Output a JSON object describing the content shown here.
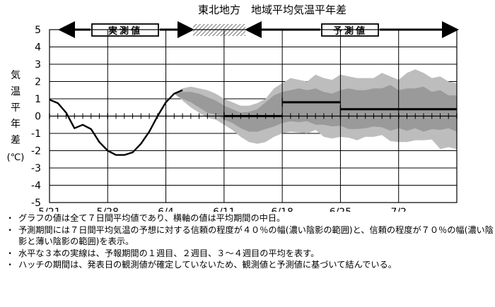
{
  "chart_data": {
    "type": "line",
    "title": "東北地方　地域平均気温平年差",
    "ylabel": "気温平年差(℃)",
    "ylabel_chars": [
      "気",
      "温",
      "平",
      "年",
      "差"
    ],
    "ylabel_unit": "(℃)",
    "ylim": [
      -5,
      5
    ],
    "yticks": [
      -5,
      -4,
      -3,
      -2,
      -1,
      0,
      1,
      2,
      3,
      4,
      5
    ],
    "xrange_days": [
      0,
      49
    ],
    "xticks": [
      {
        "label": "5/21",
        "day": 0
      },
      {
        "label": "5/28",
        "day": 7
      },
      {
        "label": "6/4",
        "day": 14
      },
      {
        "label": "6/11",
        "day": 21
      },
      {
        "label": "6/18",
        "day": 28
      },
      {
        "label": "6/25",
        "day": 35
      },
      {
        "label": "7/2",
        "day": 42
      }
    ],
    "grid": true,
    "periods": {
      "observed_label": "実測値",
      "forecast_label": "予測値",
      "observed_days": [
        0,
        14
      ],
      "hatch_days": [
        16,
        22
      ],
      "forecast_days": [
        22,
        49
      ]
    },
    "observed": {
      "x": [
        0,
        1,
        2,
        3,
        4,
        5,
        6,
        7,
        8,
        9,
        10,
        11,
        12,
        13,
        14,
        15,
        16
      ],
      "y": [
        0.95,
        0.75,
        0.2,
        -0.7,
        -0.5,
        -0.75,
        -1.5,
        -2.0,
        -2.25,
        -2.25,
        -2.1,
        -1.6,
        -0.9,
        0.0,
        0.8,
        1.3,
        1.5
      ]
    },
    "band_70": {
      "x": [
        15,
        16,
        17,
        18,
        19,
        20,
        21,
        22,
        23,
        24,
        25,
        26,
        27,
        28,
        29,
        30,
        31,
        32,
        33,
        34,
        35,
        36,
        37,
        38,
        39,
        40,
        41,
        42,
        43,
        44,
        45,
        46,
        47,
        48,
        49
      ],
      "upper": [
        1.3,
        1.6,
        1.7,
        1.6,
        1.5,
        1.3,
        1.0,
        0.8,
        0.6,
        0.6,
        0.75,
        1.0,
        1.6,
        1.9,
        2.2,
        2.1,
        2.0,
        2.4,
        2.2,
        2.1,
        2.4,
        2.3,
        2.2,
        2.2,
        2.2,
        2.5,
        2.3,
        2.1,
        2.5,
        2.7,
        2.5,
        2.2,
        2.3,
        2.0,
        1.9
      ],
      "lower": [
        1.3,
        0.9,
        0.5,
        0.2,
        -0.1,
        -0.2,
        -0.5,
        -0.8,
        -1.2,
        -1.5,
        -1.6,
        -1.5,
        -1.2,
        -1.0,
        -0.9,
        -0.95,
        -1.0,
        -0.8,
        -1.2,
        -1.3,
        -1.2,
        -1.25,
        -1.4,
        -1.2,
        -1.2,
        -1.1,
        -1.45,
        -1.5,
        -1.5,
        -1.4,
        -1.4,
        -1.35,
        -1.9,
        -1.8,
        -1.9
      ]
    },
    "band_40": {
      "x": [
        15,
        16,
        17,
        18,
        19,
        20,
        21,
        22,
        23,
        24,
        25,
        26,
        27,
        28,
        29,
        30,
        31,
        32,
        33,
        34,
        35,
        36,
        37,
        38,
        39,
        40,
        41,
        42,
        43,
        44,
        45,
        46,
        47,
        48,
        49
      ],
      "upper": [
        1.3,
        1.4,
        1.4,
        1.3,
        1.1,
        0.9,
        0.6,
        0.4,
        0.2,
        0.25,
        0.4,
        0.8,
        1.2,
        1.4,
        1.5,
        1.6,
        1.5,
        1.6,
        1.4,
        1.3,
        1.5,
        1.6,
        1.5,
        1.5,
        1.6,
        1.6,
        1.8,
        1.5,
        1.6,
        1.6,
        1.7,
        1.4,
        1.5,
        1.2,
        1.2
      ],
      "lower": [
        1.3,
        1.0,
        0.8,
        0.5,
        0.2,
        0.1,
        -0.2,
        -0.4,
        -0.7,
        -0.9,
        -0.9,
        -0.75,
        -0.6,
        -0.4,
        -0.3,
        -0.35,
        -0.3,
        -0.5,
        -0.5,
        -0.6,
        -0.55,
        -0.75,
        -0.75,
        -0.7,
        -0.6,
        -0.65,
        -0.85,
        -0.7,
        -0.85,
        -0.7,
        -0.9,
        -0.75,
        -0.8,
        -0.7,
        -0.9
      ]
    },
    "mean_lines": [
      {
        "name": "1週目",
        "x": [
          21,
          28
        ],
        "y": 0.0
      },
      {
        "name": "2週目",
        "x": [
          28,
          35
        ],
        "y": 0.8
      },
      {
        "name": "3～4週目",
        "x": [
          35,
          49
        ],
        "y": 0.4
      }
    ],
    "colors": {
      "band_70": "#bdbdbd",
      "band_40": "#9a9a9a",
      "line": "#000000",
      "hatch": "#7a7a7a"
    }
  },
  "notes": [
    {
      "bullet": "・",
      "text": "グラフの値は全て７日間平均値であり、横軸の値は平均期間の中日。"
    },
    {
      "bullet": "・",
      "text": "予測期間には７日間平均気温の予想に対する信頼の程度が４０％の幅(濃い陰影の範囲)と、信頼の程度が７０％の幅(濃い陰影と薄い陰影の範囲)を表示。"
    },
    {
      "bullet": "・",
      "text": "水平な３本の実線は、予報期間の１週目、２週目、３～４週目の平均を表す。"
    },
    {
      "bullet": "・",
      "text": "ハッチの期間は、発表日の観測値が確定していないため、観測値と予測値に基づいて結んでいる。"
    }
  ]
}
